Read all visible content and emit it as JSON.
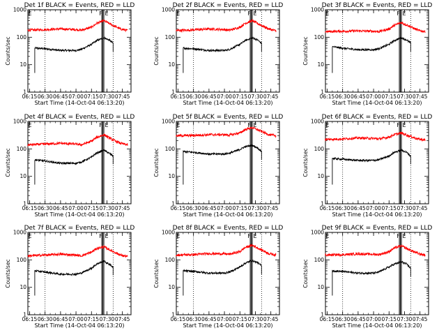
{
  "shared": {
    "xlabel": "Start Time (14-Oct-04 06:13:20)",
    "ylabel": "Counts/sec",
    "x_ticks": [
      "06:15",
      "06:30",
      "06:45",
      "07:00",
      "07:15",
      "07:30",
      "07:45"
    ],
    "y_ticks": [
      "1",
      "10",
      "100",
      "1000"
    ],
    "flag_labels": [
      "E",
      "F",
      "E",
      "E"
    ],
    "colors": {
      "events": "#000000",
      "lld": "#ff0000",
      "axes": "#000000"
    }
  },
  "chart_data": [
    {
      "type": "line",
      "title": "Det 1f BLACK = Events, RED = LLD",
      "xlabel": "Start Time (14-Oct-04 06:13:20)",
      "ylabel": "Counts/sec",
      "xlim": [
        "06:13:20",
        "07:53:20"
      ],
      "ylim": [
        1,
        1000
      ],
      "yscale": "log",
      "start_event": "06:20",
      "series": [
        {
          "name": "Events",
          "color": "#000000",
          "x": [
            "06:20",
            "06:30",
            "06:45",
            "07:00",
            "07:05",
            "07:15",
            "07:20",
            "07:27",
            "07:32",
            "07:36"
          ],
          "y": [
            40,
            38,
            33,
            33,
            36,
            55,
            75,
            95,
            80,
            60
          ]
        },
        {
          "name": "LLD",
          "color": "#ff0000",
          "x": [
            "06:13",
            "06:30",
            "06:45",
            "07:00",
            "07:05",
            "07:15",
            "07:20",
            "07:27",
            "07:35",
            "07:43",
            "07:50"
          ],
          "y": [
            180,
            190,
            200,
            190,
            180,
            230,
            320,
            400,
            280,
            200,
            175
          ]
        }
      ]
    },
    {
      "type": "line",
      "title": "Det 2f BLACK = Events, RED = LLD",
      "xlabel": "Start Time (14-Oct-04 06:13:20)",
      "ylabel": "Counts/sec",
      "xlim": [
        "06:13:20",
        "07:53:20"
      ],
      "ylim": [
        1,
        1000
      ],
      "yscale": "log",
      "start_event": "06:20",
      "series": [
        {
          "name": "Events",
          "color": "#000000",
          "x": [
            "06:20",
            "06:30",
            "06:45",
            "07:00",
            "07:05",
            "07:15",
            "07:20",
            "07:27",
            "07:32",
            "07:36"
          ],
          "y": [
            40,
            38,
            33,
            33,
            36,
            55,
            75,
            95,
            80,
            60
          ]
        },
        {
          "name": "LLD",
          "color": "#ff0000",
          "x": [
            "06:13",
            "06:30",
            "06:45",
            "07:00",
            "07:05",
            "07:15",
            "07:20",
            "07:27",
            "07:35",
            "07:43",
            "07:50"
          ],
          "y": [
            175,
            185,
            200,
            190,
            180,
            230,
            320,
            400,
            280,
            200,
            170
          ]
        }
      ]
    },
    {
      "type": "line",
      "title": "Det 3f BLACK = Events, RED = LLD",
      "xlabel": "Start Time (14-Oct-04 06:13:20)",
      "ylabel": "Counts/sec",
      "xlim": [
        "06:13:20",
        "07:53:20"
      ],
      "ylim": [
        1,
        1000
      ],
      "yscale": "log",
      "start_event": "06:20",
      "series": [
        {
          "name": "Events",
          "color": "#000000",
          "x": [
            "06:20",
            "06:30",
            "06:45",
            "07:00",
            "07:05",
            "07:15",
            "07:20",
            "07:27",
            "07:32",
            "07:36"
          ],
          "y": [
            45,
            40,
            35,
            35,
            38,
            55,
            75,
            95,
            80,
            60
          ]
        },
        {
          "name": "LLD",
          "color": "#ff0000",
          "x": [
            "06:13",
            "06:30",
            "06:45",
            "07:00",
            "07:05",
            "07:15",
            "07:20",
            "07:27",
            "07:35",
            "07:43",
            "07:50"
          ],
          "y": [
            160,
            165,
            170,
            165,
            160,
            200,
            270,
            340,
            250,
            180,
            160
          ]
        }
      ]
    },
    {
      "type": "line",
      "title": "Det 4f BLACK = Events, RED = LLD",
      "xlabel": "Start Time (14-Oct-04 06:13:20)",
      "ylabel": "Counts/sec",
      "xlim": [
        "06:13:20",
        "07:53:20"
      ],
      "ylim": [
        1,
        1000
      ],
      "yscale": "log",
      "start_event": "06:20",
      "series": [
        {
          "name": "Events",
          "color": "#000000",
          "x": [
            "06:20",
            "06:30",
            "06:45",
            "07:00",
            "07:05",
            "07:15",
            "07:20",
            "07:27",
            "07:32",
            "07:36"
          ],
          "y": [
            40,
            36,
            30,
            30,
            33,
            50,
            70,
            90,
            70,
            55
          ]
        },
        {
          "name": "LLD",
          "color": "#ff0000",
          "x": [
            "06:13",
            "06:30",
            "06:45",
            "07:00",
            "07:05",
            "07:15",
            "07:20",
            "07:27",
            "07:35",
            "07:43",
            "07:50"
          ],
          "y": [
            140,
            150,
            160,
            150,
            140,
            190,
            260,
            330,
            220,
            160,
            140
          ]
        }
      ]
    },
    {
      "type": "line",
      "title": "Det 5f BLACK = Events, RED = LLD",
      "xlabel": "Start Time (14-Oct-04 06:13:20)",
      "ylabel": "Counts/sec",
      "xlim": [
        "06:13:20",
        "07:53:20"
      ],
      "ylim": [
        1,
        1000
      ],
      "yscale": "log",
      "start_event": "06:20",
      "series": [
        {
          "name": "Events",
          "color": "#000000",
          "x": [
            "06:20",
            "06:30",
            "06:45",
            "07:00",
            "07:05",
            "07:15",
            "07:20",
            "07:27",
            "07:32",
            "07:36"
          ],
          "y": [
            80,
            75,
            65,
            65,
            70,
            95,
            120,
            135,
            110,
            80
          ]
        },
        {
          "name": "LLD",
          "color": "#ff0000",
          "x": [
            "06:13",
            "06:30",
            "06:45",
            "07:00",
            "07:05",
            "07:15",
            "07:20",
            "07:27",
            "07:35",
            "07:43",
            "07:50"
          ],
          "y": [
            300,
            310,
            330,
            330,
            320,
            380,
            500,
            600,
            450,
            330,
            300
          ]
        }
      ]
    },
    {
      "type": "line",
      "title": "Det 6f BLACK = Events, RED = LLD",
      "xlabel": "Start Time (14-Oct-04 06:13:20)",
      "ylabel": "Counts/sec",
      "xlim": [
        "06:13:20",
        "07:53:20"
      ],
      "ylim": [
        1,
        1000
      ],
      "yscale": "log",
      "start_event": "06:20",
      "series": [
        {
          "name": "Events",
          "color": "#000000",
          "x": [
            "06:20",
            "06:30",
            "06:45",
            "07:00",
            "07:05",
            "07:15",
            "07:20",
            "07:27",
            "07:32",
            "07:36"
          ],
          "y": [
            45,
            42,
            38,
            38,
            40,
            55,
            75,
            90,
            75,
            55
          ]
        },
        {
          "name": "LLD",
          "color": "#ff0000",
          "x": [
            "06:13",
            "06:30",
            "06:45",
            "07:00",
            "07:05",
            "07:15",
            "07:20",
            "07:27",
            "07:35",
            "07:43",
            "07:50"
          ],
          "y": [
            220,
            230,
            250,
            240,
            230,
            270,
            330,
            380,
            290,
            230,
            210
          ]
        }
      ]
    },
    {
      "type": "line",
      "title": "Det 7f BLACK = Events, RED = LLD",
      "xlabel": "Start Time (14-Oct-04 06:13:20)",
      "ylabel": "Counts/sec",
      "xlim": [
        "06:13:20",
        "07:53:20"
      ],
      "ylim": [
        1,
        1000
      ],
      "yscale": "log",
      "start_event": "06:20",
      "series": [
        {
          "name": "Events",
          "color": "#000000",
          "x": [
            "06:20",
            "06:30",
            "06:45",
            "07:00",
            "07:05",
            "07:15",
            "07:20",
            "07:27",
            "07:32",
            "07:36"
          ],
          "y": [
            40,
            36,
            30,
            30,
            33,
            50,
            70,
            90,
            70,
            55
          ]
        },
        {
          "name": "LLD",
          "color": "#ff0000",
          "x": [
            "06:13",
            "06:30",
            "06:45",
            "07:00",
            "07:05",
            "07:15",
            "07:20",
            "07:27",
            "07:35",
            "07:43",
            "07:50"
          ],
          "y": [
            140,
            150,
            160,
            150,
            140,
            190,
            260,
            300,
            210,
            150,
            130
          ]
        }
      ]
    },
    {
      "type": "line",
      "title": "Det 8f BLACK = Events, RED = LLD",
      "xlabel": "Start Time (14-Oct-04 06:13:20)",
      "ylabel": "Counts/sec",
      "xlim": [
        "06:13:20",
        "07:53:20"
      ],
      "ylim": [
        1,
        1000
      ],
      "yscale": "log",
      "start_event": "06:20",
      "series": [
        {
          "name": "Events",
          "color": "#000000",
          "x": [
            "06:20",
            "06:30",
            "06:45",
            "07:00",
            "07:05",
            "07:15",
            "07:20",
            "07:27",
            "07:32",
            "07:36"
          ],
          "y": [
            40,
            38,
            33,
            33,
            36,
            55,
            75,
            95,
            80,
            60
          ]
        },
        {
          "name": "LLD",
          "color": "#ff0000",
          "x": [
            "06:13",
            "06:30",
            "06:45",
            "07:00",
            "07:05",
            "07:15",
            "07:20",
            "07:27",
            "07:35",
            "07:43",
            "07:50"
          ],
          "y": [
            150,
            155,
            170,
            165,
            160,
            200,
            280,
            340,
            240,
            170,
            150
          ]
        }
      ]
    },
    {
      "type": "line",
      "title": "Det 9f BLACK = Events, RED = LLD",
      "xlabel": "Start Time (14-Oct-04 06:13:20)",
      "ylabel": "Counts/sec",
      "xlim": [
        "06:13:20",
        "07:53:20"
      ],
      "ylim": [
        1,
        1000
      ],
      "yscale": "log",
      "start_event": "06:20",
      "series": [
        {
          "name": "Events",
          "color": "#000000",
          "x": [
            "06:20",
            "06:30",
            "06:45",
            "07:00",
            "07:05",
            "07:15",
            "07:20",
            "07:27",
            "07:32",
            "07:36"
          ],
          "y": [
            40,
            38,
            33,
            33,
            36,
            55,
            70,
            85,
            70,
            50
          ]
        },
        {
          "name": "LLD",
          "color": "#ff0000",
          "x": [
            "06:13",
            "06:30",
            "06:45",
            "07:00",
            "07:05",
            "07:15",
            "07:20",
            "07:27",
            "07:35",
            "07:43",
            "07:50"
          ],
          "y": [
            150,
            155,
            165,
            160,
            155,
            200,
            270,
            320,
            230,
            170,
            150
          ]
        }
      ]
    }
  ]
}
